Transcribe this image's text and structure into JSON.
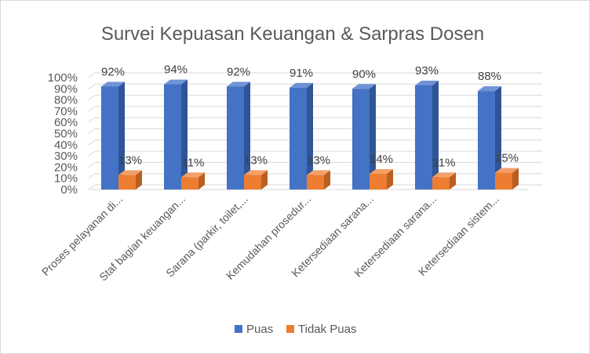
{
  "chart_data": {
    "type": "bar",
    "title": "Survei Kepuasan Keuangan & Sarpras Dosen",
    "xlabel": "",
    "ylabel": "",
    "ylim": [
      0,
      100
    ],
    "yticks": [
      "0%",
      "10%",
      "20%",
      "30%",
      "40%",
      "50%",
      "60%",
      "70%",
      "80%",
      "90%",
      "100%"
    ],
    "categories": [
      "Proses pelayanan di...",
      "Staf bagian keuangan...",
      "Sarana (parkir, toilet,...",
      "Kemudahan prosedur...",
      "Ketersediaan sarana...",
      "Ketersediaan sarana...",
      "Ketersediaan sistem..."
    ],
    "series": [
      {
        "name": "Puas",
        "values": [
          92,
          94,
          92,
          91,
          90,
          93,
          88
        ],
        "labels": [
          "92%",
          "94%",
          "92%",
          "91%",
          "90%",
          "93%",
          "88%"
        ],
        "color": "#4472C4",
        "side_color": "#2F5597",
        "top_color": "#6F93D6"
      },
      {
        "name": "Tidak Puas",
        "values": [
          13,
          11,
          13,
          13,
          14,
          11,
          15
        ],
        "labels": [
          "13%",
          "11%",
          "13%",
          "13%",
          "14%",
          "11%",
          "15%"
        ],
        "color": "#ED7D31",
        "side_color": "#B85F21",
        "top_color": "#F3A06A"
      }
    ],
    "grid": true,
    "legend": "bottom",
    "style": "3d-clustered-column"
  }
}
